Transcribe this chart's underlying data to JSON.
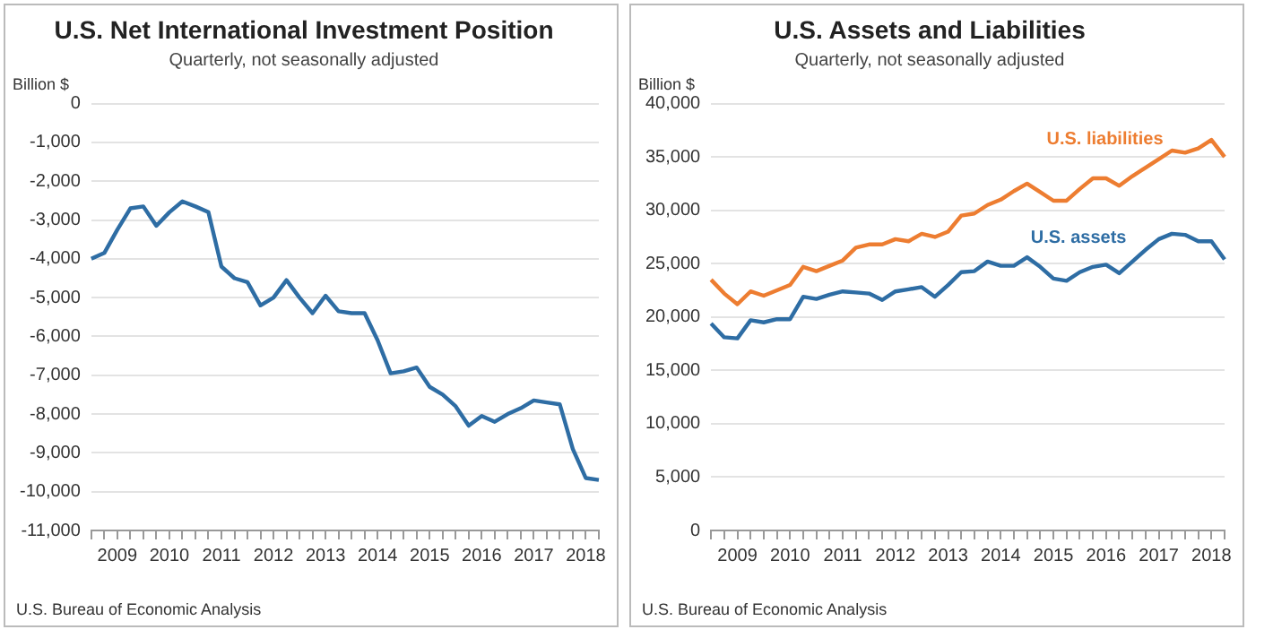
{
  "chart_data": [
    {
      "type": "line",
      "title": "U.S. Net International Investment Position",
      "subtitle": "Quarterly, not seasonally adjusted",
      "ylabel": "Billion $",
      "categories": [
        null,
        null,
        "2009",
        null,
        null,
        null,
        "2010",
        null,
        null,
        null,
        "2011",
        null,
        null,
        null,
        "2012",
        null,
        null,
        null,
        "2013",
        null,
        null,
        null,
        "2014",
        null,
        null,
        null,
        "2015",
        null,
        null,
        null,
        "2016",
        null,
        null,
        null,
        "2017",
        null,
        null,
        null,
        "2018",
        null
      ],
      "series": [
        {
          "color": "#2e6da4",
          "values": [
            -4000,
            -3850,
            -3250,
            -2700,
            -2650,
            -3150,
            -2800,
            -2520,
            -2650,
            -2800,
            -4200,
            -4500,
            -4600,
            -5200,
            -5000,
            -4550,
            -5000,
            -5400,
            -4950,
            -5350,
            -5400,
            -5400,
            -6100,
            -6950,
            -6900,
            -6800,
            -7300,
            -7500,
            -7800,
            -8300,
            -8050,
            -8200,
            -8000,
            -7850,
            -7650,
            -7700,
            -7750,
            -8900,
            -9650,
            -9700
          ]
        }
      ],
      "ylim": [
        -11000,
        0
      ],
      "yticks": [
        {
          "value": -11000,
          "label": "-11,000"
        },
        {
          "value": -10000,
          "label": "-10,000"
        },
        {
          "value": -9000,
          "label": "-9,000"
        },
        {
          "value": -8000,
          "label": "-8,000"
        },
        {
          "value": -7000,
          "label": "-7,000"
        },
        {
          "value": -6000,
          "label": "-6,000"
        },
        {
          "value": -5000,
          "label": "-5,000"
        },
        {
          "value": -4000,
          "label": "-4,000"
        },
        {
          "value": -3000,
          "label": "-3,000"
        },
        {
          "value": -2000,
          "label": "-2,000"
        },
        {
          "value": -1000,
          "label": "-1,000"
        },
        0
      ],
      "grid": "y",
      "legend": false,
      "marker": "none",
      "annotations": [
        "U.S. Bureau of Economic Analysis"
      ]
    },
    {
      "type": "line",
      "title": "U.S. Assets and Liabilities",
      "subtitle": "Quarterly, not seasonally adjusted",
      "ylabel": "Billion $",
      "categories": [
        null,
        null,
        "2009",
        null,
        null,
        null,
        "2010",
        null,
        null,
        null,
        "2011",
        null,
        null,
        null,
        "2012",
        null,
        null,
        null,
        "2013",
        null,
        null,
        null,
        "2014",
        null,
        null,
        null,
        "2015",
        null,
        null,
        null,
        "2016",
        null,
        null,
        null,
        "2017",
        null,
        null,
        null,
        "2018",
        null
      ],
      "series": [
        {
          "name": "U.S. liabilities",
          "color": "#ed7d31",
          "values": [
            23500,
            22200,
            21200,
            22400,
            22000,
            22500,
            23000,
            24700,
            24300,
            24800,
            25300,
            26500,
            26800,
            26800,
            27300,
            27100,
            27800,
            27500,
            28000,
            29500,
            29700,
            30500,
            31000,
            31800,
            32500,
            31700,
            30900,
            30900,
            32000,
            33000,
            33000,
            32300,
            33200,
            34000,
            34800,
            35600,
            35400,
            35800,
            36600,
            35000
          ]
        },
        {
          "name": "U.S. assets",
          "color": "#2e6da4",
          "values": [
            19400,
            18100,
            18000,
            19700,
            19500,
            19800,
            19800,
            21900,
            21700,
            22100,
            22400,
            22300,
            22200,
            21600,
            22400,
            22600,
            22800,
            21900,
            23000,
            24200,
            24300,
            25200,
            24800,
            24800,
            25600,
            24700,
            23600,
            23400,
            24200,
            24700,
            24900,
            24100,
            25200,
            26300,
            27300,
            27800,
            27700,
            27100,
            27100,
            25400
          ]
        }
      ],
      "ylim": [
        0,
        40000
      ],
      "yticks": [
        0,
        {
          "value": 5000,
          "label": "5,000"
        },
        {
          "value": 10000,
          "label": "10,000"
        },
        {
          "value": 15000,
          "label": "15,000"
        },
        {
          "value": 20000,
          "label": "20,000"
        },
        {
          "value": 25000,
          "label": "25,000"
        },
        {
          "value": 30000,
          "label": "30,000"
        },
        {
          "value": 35000,
          "label": "35,000"
        },
        {
          "value": 40000,
          "label": "40,000"
        }
      ],
      "grid": "y",
      "legend": false,
      "marker": "none",
      "annotations": [
        "U.S. Bureau of Economic Analysis"
      ]
    }
  ]
}
